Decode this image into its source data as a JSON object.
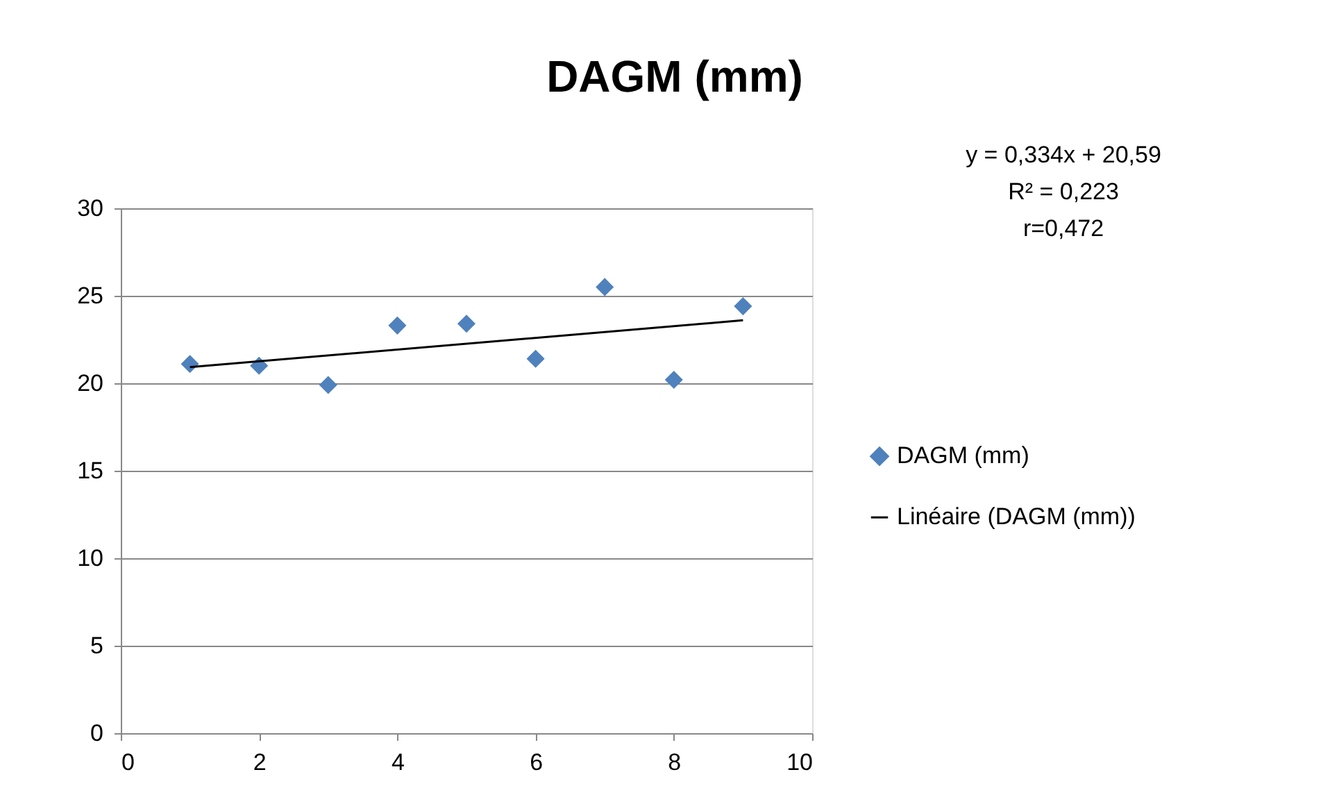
{
  "chart_data": {
    "type": "scatter",
    "title": "DAGM (mm)",
    "annotations": [
      "y = 0,334x + 20,59",
      "R² = 0,223",
      "r=0,472"
    ],
    "series": [
      {
        "name": "DAGM (mm)",
        "color": "#4f81bd",
        "marker": "diamond",
        "x": [
          1,
          2,
          3,
          4,
          5,
          6,
          7,
          8,
          9
        ],
        "values": [
          21.1,
          21.0,
          19.9,
          23.3,
          23.4,
          21.4,
          25.5,
          20.2,
          24.4
        ]
      },
      {
        "name": "Linéaire (DAGM (mm))",
        "type": "line",
        "color": "#000000",
        "line_style": "solid",
        "x": [
          1,
          9
        ],
        "values": [
          20.92,
          23.6
        ]
      }
    ],
    "xlim": [
      0,
      10
    ],
    "xticks": [
      0,
      2,
      4,
      6,
      8,
      10
    ],
    "ylim": [
      0,
      30
    ],
    "yticks": [
      0,
      5,
      10,
      15,
      20,
      25,
      30
    ],
    "grid": "y",
    "legend": "right"
  }
}
